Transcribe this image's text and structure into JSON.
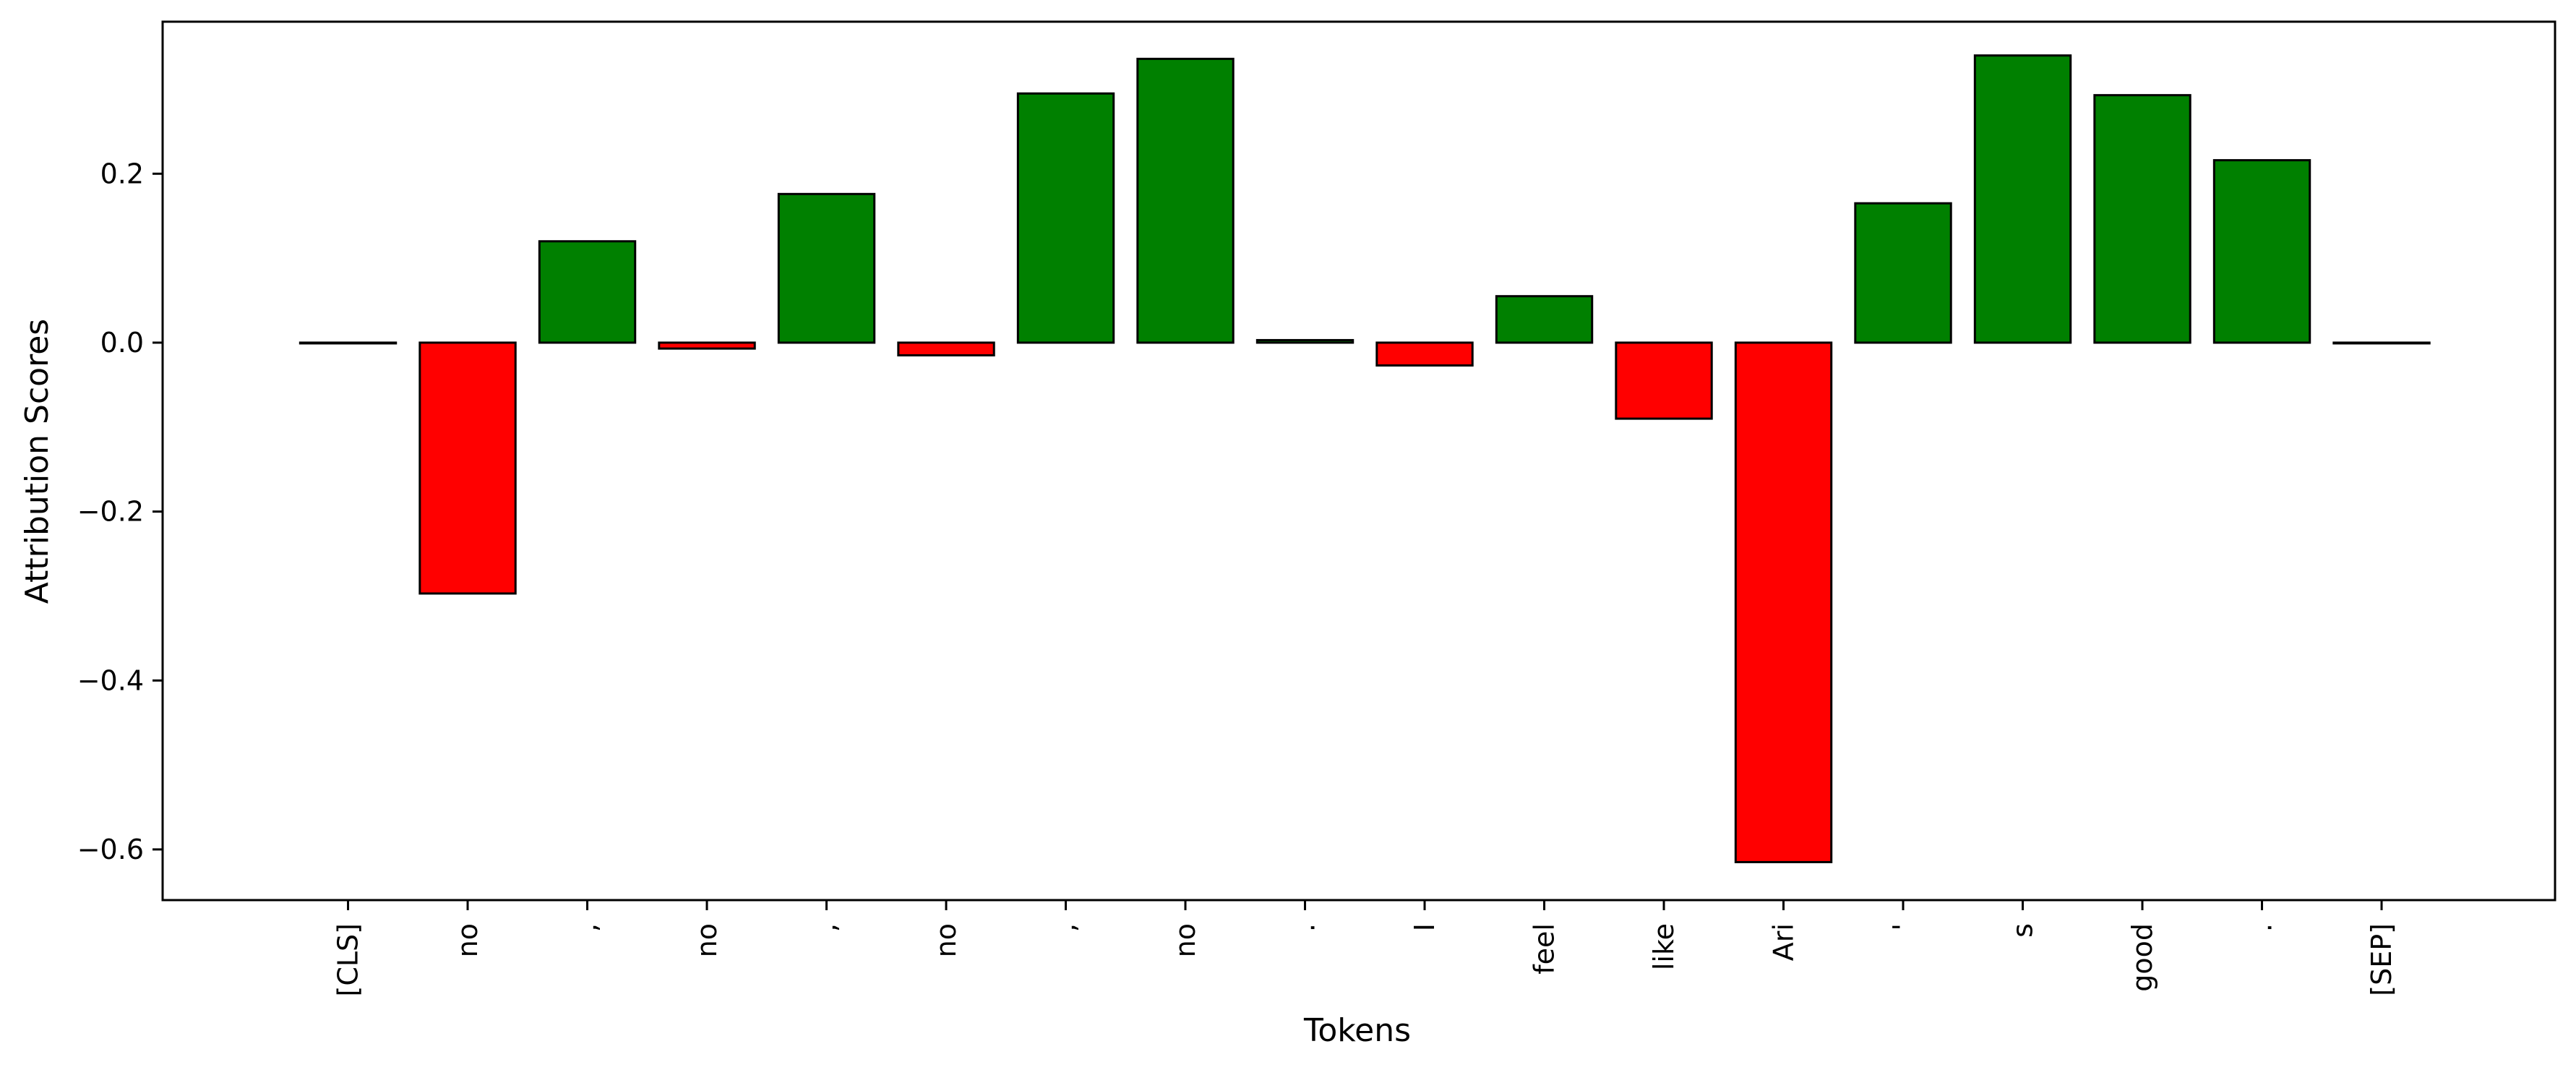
{
  "colors": {
    "positive": "#008000",
    "negative": "#ff0000",
    "edge": "#000000"
  },
  "chart_data": {
    "type": "bar",
    "title": "",
    "xlabel": "Tokens",
    "ylabel": "Attribution Scores",
    "ylim": [
      -0.66,
      0.38
    ],
    "yticks": [
      -0.6,
      -0.4,
      -0.2,
      0.0,
      0.2
    ],
    "ytick_labels": [
      "−0.6",
      "−0.4",
      "−0.2",
      "0.0",
      "0.2"
    ],
    "grid": false,
    "categories": [
      "[CLS]",
      "no",
      ",",
      "no",
      ",",
      "no",
      ",",
      "no",
      ".",
      "I",
      "feel",
      "like",
      "Ari",
      "'",
      "s",
      "good",
      ".",
      "[SEP]"
    ],
    "values": [
      0.0,
      -0.297,
      0.12,
      -0.007,
      0.176,
      -0.015,
      0.295,
      0.336,
      0.003,
      -0.027,
      0.055,
      -0.09,
      -0.615,
      0.165,
      0.34,
      0.293,
      0.216,
      0.0
    ]
  }
}
